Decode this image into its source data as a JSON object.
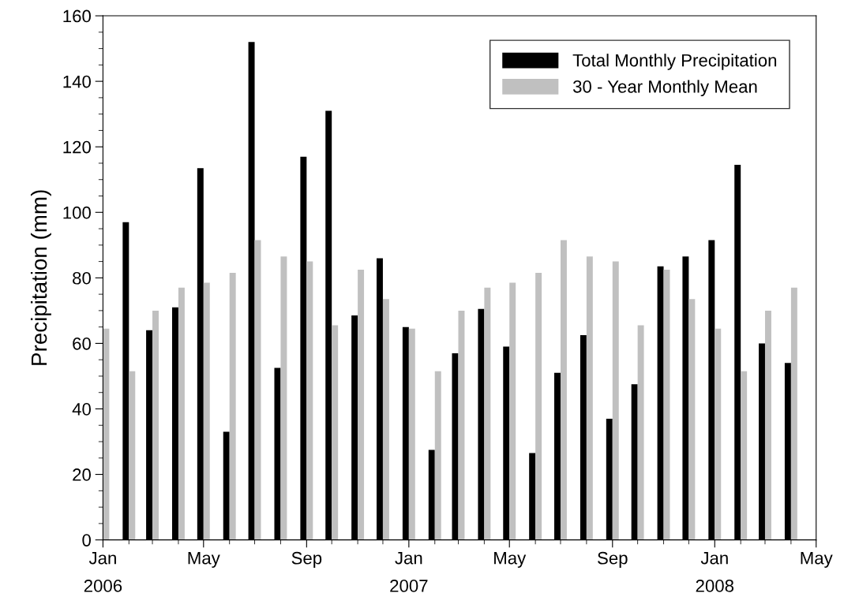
{
  "chart_data": {
    "type": "bar",
    "ylabel": "Precipitation (mm)",
    "x": [
      "2006-01",
      "2006-02",
      "2006-03",
      "2006-04",
      "2006-05",
      "2006-06",
      "2006-07",
      "2006-08",
      "2006-09",
      "2006-10",
      "2006-11",
      "2006-12",
      "2007-01",
      "2007-02",
      "2007-03",
      "2007-04",
      "2007-05",
      "2007-06",
      "2007-07",
      "2007-08",
      "2007-09",
      "2007-10",
      "2007-11",
      "2007-12",
      "2008-01",
      "2008-02",
      "2008-03",
      "2008-04"
    ],
    "series": [
      {
        "name": "Total Monthly Precipitation",
        "color": "#000000",
        "values": [
          null,
          97,
          64,
          71,
          113.5,
          33,
          152,
          52.5,
          117,
          131,
          68.5,
          86,
          65,
          27.5,
          57,
          70.5,
          59,
          26.5,
          51,
          62.5,
          37,
          47.5,
          83.5,
          86.5,
          91.5,
          114.5,
          60,
          54
        ]
      },
      {
        "name": "30 - Year Monthly Mean",
        "color": "#c0c0c0",
        "values": [
          64.5,
          51.5,
          70,
          77,
          78.5,
          81.5,
          91.5,
          86.5,
          85,
          65.5,
          82.5,
          73.5,
          64.5,
          51.5,
          70,
          77,
          78.5,
          81.5,
          91.5,
          86.5,
          85,
          65.5,
          82.5,
          73.5,
          64.5,
          51.5,
          70,
          77
        ]
      }
    ],
    "xlim": [
      "2006-01",
      "2008-05"
    ],
    "xticks": [
      {
        "value": "2006-01",
        "label": "Jan\n2006"
      },
      {
        "value": "2006-05",
        "label": "May"
      },
      {
        "value": "2006-09",
        "label": "Sep"
      },
      {
        "value": "2007-01",
        "label": "Jan\n2007"
      },
      {
        "value": "2007-05",
        "label": "May"
      },
      {
        "value": "2007-09",
        "label": "Sep"
      },
      {
        "value": "2008-01",
        "label": "Jan\n2008"
      },
      {
        "value": "2008-05",
        "label": "May"
      }
    ],
    "ylim": [
      0,
      160
    ],
    "yticks": [
      0,
      20,
      40,
      60,
      80,
      100,
      120,
      140,
      160
    ],
    "legend": "top right"
  }
}
